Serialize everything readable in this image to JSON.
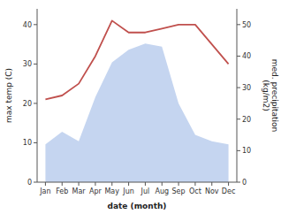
{
  "chart_data": {
    "type": "line",
    "categories": [
      "Jan",
      "Feb",
      "Mar",
      "Apr",
      "May",
      "Jun",
      "Jul",
      "Aug",
      "Sep",
      "Oct",
      "Nov",
      "Dec"
    ],
    "xlabel": "date (month)",
    "ylabel": "max temp (C)",
    "y2label": "med. precipitation\n(kg/m2)",
    "ylim": [
      0,
      44
    ],
    "yticks": [
      0,
      10,
      20,
      30,
      40
    ],
    "y2lim": [
      0,
      55
    ],
    "y2ticks": [
      0,
      10,
      20,
      30,
      40,
      50
    ],
    "series": [
      {
        "type": "area",
        "axis": "y2",
        "color": "#c5d5f0",
        "values": [
          12,
          16,
          13,
          27,
          38,
          42,
          44,
          43,
          25,
          15,
          13,
          12
        ]
      },
      {
        "type": "line",
        "color": "#c0504d",
        "values": [
          21,
          22,
          25,
          32,
          41,
          38,
          38,
          39,
          40,
          40,
          35,
          30
        ]
      }
    ]
  }
}
